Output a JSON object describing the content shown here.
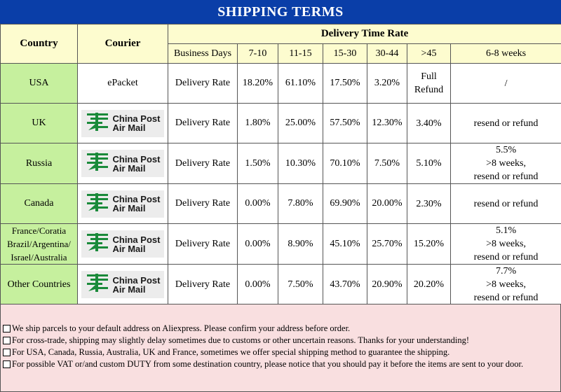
{
  "title": "SHIPPING TERMS",
  "header": {
    "country": "Country",
    "courier": "Courier",
    "delivery_time_rate": "Delivery Time Rate",
    "business_days": "Business Days",
    "columns": [
      "7-10",
      "11-15",
      "15-30",
      "30-44",
      ">45",
      "6-8 weeks"
    ]
  },
  "logo": {
    "line1": "China Post",
    "line2": "Air Mail",
    "icon": "china-post-logo-icon",
    "color": "#1a8a3a"
  },
  "rows": [
    {
      "country": [
        "USA"
      ],
      "courier": "ePacket",
      "label": "Delivery Rate",
      "values": [
        "18.20%",
        "61.10%",
        "17.50%",
        "3.20%"
      ],
      "v45": [
        "Full",
        "Refund"
      ],
      "weeks": [
        "/"
      ]
    },
    {
      "country": [
        "UK"
      ],
      "courier": "",
      "label": "Delivery Rate",
      "values": [
        "1.80%",
        "25.00%",
        "57.50%",
        "12.30%"
      ],
      "v45": [
        "3.40%"
      ],
      "weeks": [
        "resend or refund"
      ]
    },
    {
      "country": [
        "Russia"
      ],
      "courier": "",
      "label": "Delivery Rate",
      "values": [
        "1.50%",
        "10.30%",
        "70.10%",
        "7.50%"
      ],
      "v45": [
        "5.10%"
      ],
      "weeks": [
        "5.5%",
        ">8 weeks,",
        "resend or refund"
      ]
    },
    {
      "country": [
        "Canada"
      ],
      "courier": "",
      "label": "Delivery Rate",
      "values": [
        "0.00%",
        "7.80%",
        "69.90%",
        "20.00%"
      ],
      "v45": [
        "2.30%"
      ],
      "weeks": [
        "resend or refund"
      ]
    },
    {
      "country": [
        "France/Coratia",
        "Brazil/Argentina/",
        "Israel/Australia"
      ],
      "courier": "",
      "label": "Delivery Rate",
      "values": [
        "0.00%",
        "8.90%",
        "45.10%",
        "25.70%"
      ],
      "v45": [
        "15.20%"
      ],
      "weeks": [
        "5.1%",
        ">8 weeks,",
        "resend or refund"
      ]
    },
    {
      "country": [
        "Other Countries"
      ],
      "courier": "",
      "label": "Delivery Rate",
      "values": [
        "0.00%",
        "7.50%",
        "43.70%",
        "20.90%"
      ],
      "v45": [
        "20.20%"
      ],
      "weeks": [
        "7.7%",
        ">8 weeks,",
        "resend or refund"
      ]
    }
  ],
  "notes": [
    "We ship parcels to your default address on Aliexpress. Please confirm your address before order.",
    "For cross-trade, shipping may slightly delay sometimes due to customs or other uncertain reasons. Thanks for your understanding!",
    "For USA, Canada, Russia, Australia, UK and France, sometimes we offer special shipping method to guarantee the shipping.",
    "For possible VAT or/and custom DUTY from some destination country, please notice that you should pay it before the items are sent to your door."
  ],
  "colors": {
    "banner": "#0a3ea8",
    "header": "#fdfccf",
    "country": "#c6f09e",
    "notes": "#f9dfe0"
  }
}
